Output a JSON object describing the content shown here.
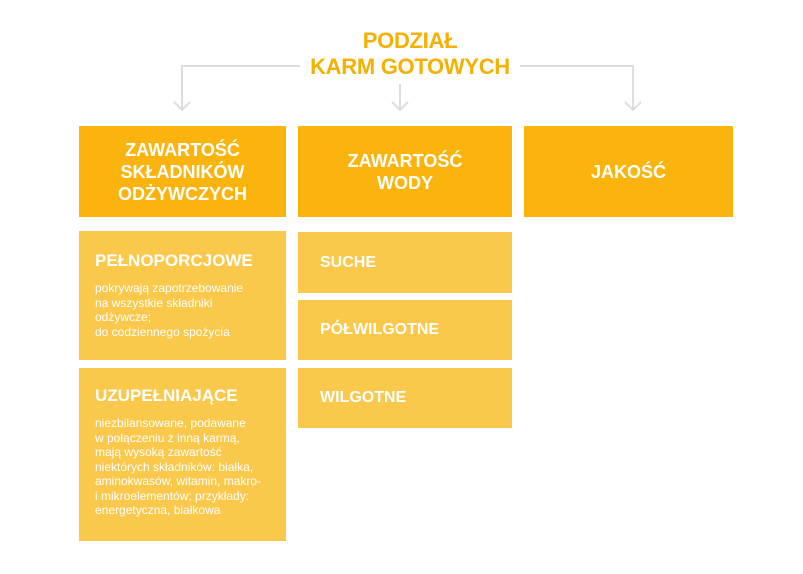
{
  "title": {
    "line1": "PODZIAŁ",
    "line2": "KARM GOTOWYCH"
  },
  "colors": {
    "title": "#f5b000",
    "header": "#fbb40d",
    "sub": "#fac84a",
    "arrow": "#dddddd"
  },
  "columns": [
    {
      "header": {
        "line1": "ZAWARTOŚĆ",
        "line2": "SKŁADNIKÓW",
        "line3": "ODŻYWCZYCH"
      },
      "items": [
        {
          "title": "PEŁNOPORCJOWE",
          "lines": [
            "pokrywają  zapotrzebowanie",
            "na wszystkie składniki",
            "odżywcze;",
            "do codziennego spożycia"
          ]
        },
        {
          "title": "UZUPEŁNIAJĄCE",
          "lines": [
            "niezbilansowane, podawane",
            "w połączeniu z inną karmą,",
            "mają wysoką zawartość",
            "niektórych składników: białka,",
            "aminokwasów, witamin, makro-",
            "i mikroelementów; przykłady:",
            "energetyczna, białkowa"
          ]
        }
      ]
    },
    {
      "header": {
        "line1": "ZAWARTOŚĆ",
        "line2": "WODY"
      },
      "items": [
        {
          "title": "SUCHE"
        },
        {
          "title": "PÓŁWILGOTNE"
        },
        {
          "title": "WILGOTNE"
        }
      ]
    },
    {
      "header": {
        "line1": "JAKOŚĆ"
      }
    }
  ]
}
